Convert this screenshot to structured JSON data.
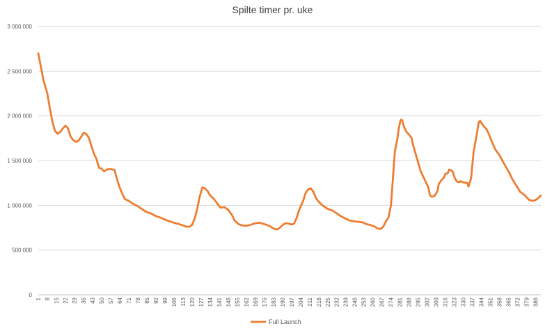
{
  "chart_data": {
    "type": "line",
    "title": "Spilte timer pr. uke",
    "xlabel": "",
    "ylabel": "",
    "ylim": [
      0,
      3000000
    ],
    "y_ticks": [
      0,
      500000,
      1000000,
      1500000,
      2000000,
      2500000,
      3000000
    ],
    "y_tick_labels": [
      "0",
      "500 000",
      "1 000 000",
      "1 500 000",
      "2 000 000",
      "2 500 000",
      "3 000 000"
    ],
    "x_range": [
      1,
      390
    ],
    "x_tick_labels": [
      "1",
      "8",
      "15",
      "22",
      "29",
      "36",
      "43",
      "50",
      "57",
      "64",
      "71",
      "78",
      "85",
      "92",
      "99",
      "106",
      "113",
      "120",
      "127",
      "134",
      "141",
      "148",
      "155",
      "162",
      "169",
      "176",
      "183",
      "190",
      "197",
      "204",
      "211",
      "218",
      "225",
      "232",
      "239",
      "246",
      "253",
      "260",
      "267",
      "274",
      "281",
      "288",
      "295",
      "302",
      "309",
      "316",
      "323",
      "330",
      "337",
      "344",
      "351",
      "358",
      "365",
      "372",
      "379",
      "386"
    ],
    "grid": true,
    "legend_position": "bottom",
    "series": [
      {
        "name": "Full Launch",
        "color": "#ED7D31",
        "points": [
          [
            1,
            2700000
          ],
          [
            3,
            2550000
          ],
          [
            5,
            2400000
          ],
          [
            8,
            2250000
          ],
          [
            10,
            2080000
          ],
          [
            12,
            1930000
          ],
          [
            14,
            1830000
          ],
          [
            16,
            1800000
          ],
          [
            18,
            1820000
          ],
          [
            20,
            1860000
          ],
          [
            22,
            1890000
          ],
          [
            24,
            1860000
          ],
          [
            26,
            1770000
          ],
          [
            28,
            1730000
          ],
          [
            30,
            1710000
          ],
          [
            32,
            1720000
          ],
          [
            34,
            1760000
          ],
          [
            36,
            1810000
          ],
          [
            38,
            1800000
          ],
          [
            40,
            1760000
          ],
          [
            42,
            1670000
          ],
          [
            44,
            1580000
          ],
          [
            46,
            1520000
          ],
          [
            48,
            1420000
          ],
          [
            50,
            1410000
          ],
          [
            52,
            1380000
          ],
          [
            54,
            1400000
          ],
          [
            57,
            1405000
          ],
          [
            60,
            1395000
          ],
          [
            62,
            1290000
          ],
          [
            64,
            1200000
          ],
          [
            66,
            1130000
          ],
          [
            68,
            1070000
          ],
          [
            71,
            1050000
          ],
          [
            74,
            1020000
          ],
          [
            78,
            990000
          ],
          [
            81,
            960000
          ],
          [
            84,
            930000
          ],
          [
            88,
            910000
          ],
          [
            92,
            880000
          ],
          [
            96,
            860000
          ],
          [
            99,
            840000
          ],
          [
            103,
            820000
          ],
          [
            106,
            805000
          ],
          [
            110,
            790000
          ],
          [
            113,
            775000
          ],
          [
            116,
            760000
          ],
          [
            118,
            762000
          ],
          [
            120,
            780000
          ],
          [
            122,
            850000
          ],
          [
            124,
            960000
          ],
          [
            126,
            1100000
          ],
          [
            128,
            1200000
          ],
          [
            130,
            1190000
          ],
          [
            132,
            1160000
          ],
          [
            134,
            1110000
          ],
          [
            137,
            1070000
          ],
          [
            140,
            1010000
          ],
          [
            142,
            975000
          ],
          [
            145,
            980000
          ],
          [
            148,
            950000
          ],
          [
            151,
            890000
          ],
          [
            153,
            830000
          ],
          [
            156,
            790000
          ],
          [
            159,
            775000
          ],
          [
            162,
            770000
          ],
          [
            165,
            780000
          ],
          [
            169,
            800000
          ],
          [
            172,
            805000
          ],
          [
            176,
            790000
          ],
          [
            180,
            770000
          ],
          [
            183,
            740000
          ],
          [
            186,
            730000
          ],
          [
            188,
            750000
          ],
          [
            191,
            790000
          ],
          [
            193,
            800000
          ],
          [
            195,
            795000
          ],
          [
            197,
            785000
          ],
          [
            199,
            795000
          ],
          [
            201,
            860000
          ],
          [
            203,
            950000
          ],
          [
            206,
            1050000
          ],
          [
            208,
            1140000
          ],
          [
            210,
            1180000
          ],
          [
            212,
            1190000
          ],
          [
            214,
            1150000
          ],
          [
            216,
            1080000
          ],
          [
            218,
            1040000
          ],
          [
            221,
            1000000
          ],
          [
            225,
            960000
          ],
          [
            229,
            940000
          ],
          [
            232,
            910000
          ],
          [
            235,
            880000
          ],
          [
            239,
            850000
          ],
          [
            242,
            830000
          ],
          [
            246,
            820000
          ],
          [
            249,
            815000
          ],
          [
            252,
            810000
          ],
          [
            255,
            790000
          ],
          [
            258,
            780000
          ],
          [
            261,
            765000
          ],
          [
            264,
            740000
          ],
          [
            266,
            735000
          ],
          [
            268,
            760000
          ],
          [
            270,
            820000
          ],
          [
            272,
            860000
          ],
          [
            274,
            1000000
          ],
          [
            275,
            1200000
          ],
          [
            276,
            1400000
          ],
          [
            277,
            1600000
          ],
          [
            279,
            1750000
          ],
          [
            280,
            1850000
          ],
          [
            281,
            1930000
          ],
          [
            282,
            1960000
          ],
          [
            283,
            1940000
          ],
          [
            284,
            1880000
          ],
          [
            286,
            1820000
          ],
          [
            288,
            1790000
          ],
          [
            290,
            1750000
          ],
          [
            291,
            1680000
          ],
          [
            293,
            1580000
          ],
          [
            295,
            1480000
          ],
          [
            297,
            1380000
          ],
          [
            299,
            1320000
          ],
          [
            301,
            1260000
          ],
          [
            303,
            1200000
          ],
          [
            304,
            1120000
          ],
          [
            305,
            1100000
          ],
          [
            306,
            1095000
          ],
          [
            308,
            1110000
          ],
          [
            310,
            1160000
          ],
          [
            311,
            1240000
          ],
          [
            313,
            1280000
          ],
          [
            315,
            1310000
          ],
          [
            316,
            1350000
          ],
          [
            318,
            1360000
          ],
          [
            319,
            1400000
          ],
          [
            321,
            1390000
          ],
          [
            322,
            1370000
          ],
          [
            323,
            1320000
          ],
          [
            324,
            1290000
          ],
          [
            325,
            1265000
          ],
          [
            327,
            1260000
          ],
          [
            328,
            1270000
          ],
          [
            330,
            1255000
          ],
          [
            333,
            1250000
          ],
          [
            334,
            1210000
          ],
          [
            336,
            1300000
          ],
          [
            337,
            1450000
          ],
          [
            338,
            1600000
          ],
          [
            340,
            1760000
          ],
          [
            342,
            1930000
          ],
          [
            343,
            1945000
          ],
          [
            344,
            1920000
          ],
          [
            346,
            1880000
          ],
          [
            348,
            1850000
          ],
          [
            350,
            1790000
          ],
          [
            351,
            1750000
          ],
          [
            353,
            1680000
          ],
          [
            355,
            1620000
          ],
          [
            358,
            1560000
          ],
          [
            361,
            1480000
          ],
          [
            365,
            1380000
          ],
          [
            368,
            1290000
          ],
          [
            372,
            1200000
          ],
          [
            374,
            1150000
          ],
          [
            377,
            1120000
          ],
          [
            379,
            1090000
          ],
          [
            381,
            1060000
          ],
          [
            384,
            1050000
          ],
          [
            386,
            1060000
          ],
          [
            388,
            1080000
          ],
          [
            390,
            1110000
          ]
        ]
      }
    ]
  }
}
